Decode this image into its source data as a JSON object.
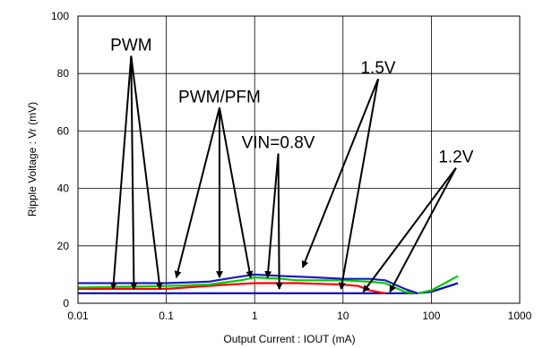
{
  "chart_data": {
    "type": "line",
    "x_scale": "log",
    "xlim": [
      0.01,
      1000
    ],
    "ylim": [
      0,
      100
    ],
    "grid": true,
    "xlabel": "Output Current : IOUT (mA)",
    "ylabel": "Ripple Voltage : Vr (mV)",
    "xticks": [
      "0.01",
      "0.1",
      "1",
      "10",
      "100",
      "1000"
    ],
    "yticks": [
      "0",
      "20",
      "40",
      "60",
      "80",
      "100"
    ],
    "series": [
      {
        "color": "#0000cc",
        "x": [
          0.01,
          0.1,
          1,
          10,
          20,
          50,
          70,
          100,
          200
        ],
        "y": [
          3.5,
          3.5,
          3.5,
          3.5,
          3.5,
          3.5,
          3.5,
          4,
          7
        ]
      },
      {
        "color": "#ff0000",
        "x": [
          0.01,
          0.1,
          0.5,
          1,
          3,
          10,
          15,
          20,
          30
        ],
        "y": [
          5,
          5,
          6.5,
          7,
          7,
          6.5,
          6,
          4.5,
          3.5
        ]
      },
      {
        "color": "#00cc00",
        "x": [
          0.01,
          0.1,
          0.3,
          0.7,
          1,
          2,
          3,
          10,
          20,
          30,
          50,
          70,
          100,
          200
        ],
        "y": [
          5.5,
          6,
          6.5,
          8,
          9,
          8.5,
          8,
          8,
          7.5,
          7,
          4,
          3.5,
          4.5,
          9.5
        ]
      },
      {
        "color": "#1c1cbf",
        "x": [
          0.01,
          0.1,
          0.3,
          0.6,
          1,
          2,
          5,
          10,
          20,
          30,
          50,
          70
        ],
        "y": [
          7,
          7,
          7.5,
          9,
          10,
          9.5,
          9,
          8.5,
          8.5,
          8,
          5,
          3.5
        ]
      }
    ],
    "annotations": [
      {
        "text": "PWM",
        "label_at": [
          0.04,
          88
        ],
        "arrows_to": [
          [
            0.025,
            5
          ],
          [
            0.043,
            5
          ],
          [
            0.085,
            5
          ]
        ]
      },
      {
        "text": "PWM/PFM",
        "label_at": [
          0.4,
          70
        ],
        "arrows_to": [
          [
            0.13,
            9
          ],
          [
            0.4,
            9
          ],
          [
            0.9,
            9
          ]
        ]
      },
      {
        "text": "VIN=0.8V",
        "label_at": [
          1.85,
          54
        ],
        "arrows_to": [
          [
            1.4,
            9
          ],
          [
            1.9,
            5
          ]
        ]
      },
      {
        "text": "1.5V",
        "label_at": [
          25,
          80
        ],
        "arrows_to": [
          [
            3.5,
            12.5
          ],
          [
            9.5,
            5
          ]
        ]
      },
      {
        "text": "1.2V",
        "label_at": [
          190,
          49
        ],
        "arrows_to": [
          [
            17,
            4
          ],
          [
            34,
            4
          ]
        ]
      }
    ]
  }
}
